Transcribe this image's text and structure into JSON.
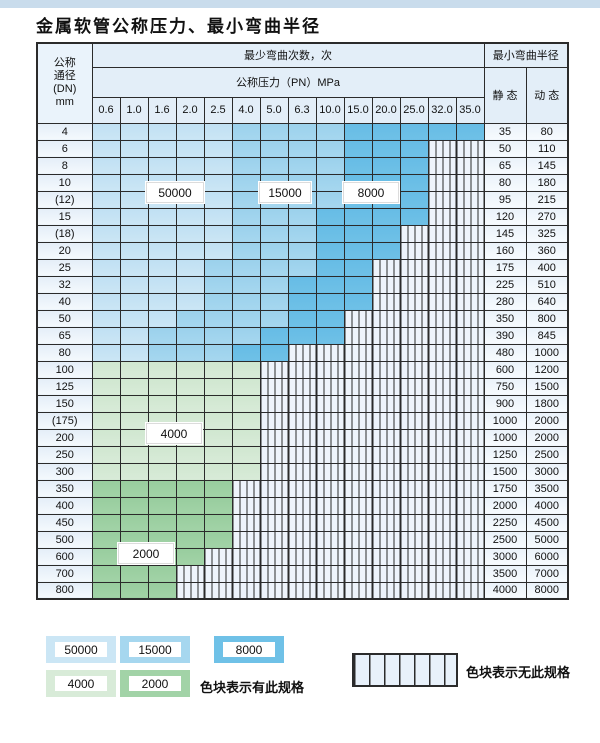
{
  "title": "金属软管公称压力、最小弯曲半径",
  "colors": {
    "zone_50000_light_blue": "#cbe6f5",
    "zone_15000_medium_blue": "#a6d7ef",
    "zone_8000_dark_blue": "#6fc1e7",
    "zone_4000_light_green": "#d8ebd8",
    "zone_2000_medium_green": "#a2d3a7",
    "header_background": "#e3eef8",
    "grid_border": "#2b2b2b"
  },
  "table": {
    "header": {
      "dn_label_lines": "公称 通径 (DN) mm",
      "dn_line1": "公称",
      "dn_line2": "通径",
      "dn_line3": "(DN)",
      "dn_line4": "mm",
      "bend_cycles_label": "最少弯曲次数，次",
      "pressure_label": "公称压力（PN）MPa",
      "radius_label": "最小弯曲半径",
      "static_label": "静 态",
      "dynamic_label": "动 态",
      "pressures": [
        "0.6",
        "1.0",
        "1.6",
        "2.0",
        "2.5",
        "4.0",
        "5.0",
        "6.3",
        "10.0",
        "15.0",
        "20.0",
        "25.0",
        "32.0",
        "35.0"
      ]
    },
    "zone_legend_key": {
      "L": "50000",
      "M": "15000",
      "D": "8000",
      "G": "4000",
      "E": "2000",
      "H": "no-spec-hatched"
    },
    "rows": [
      {
        "dn": "4",
        "zones": "LLLLLMMMMDDDDD",
        "static": "35",
        "dynamic": "80"
      },
      {
        "dn": "6",
        "zones": "LLLLLMMMMDDDHH",
        "static": "50",
        "dynamic": "110"
      },
      {
        "dn": "8",
        "zones": "LLLLLMMMMDDDHH",
        "static": "65",
        "dynamic": "145"
      },
      {
        "dn": "10",
        "zones": "LLLLLMMMMDDDHH",
        "static": "80",
        "dynamic": "180"
      },
      {
        "dn": "(12)",
        "zones": "LLLLLMMMMDDDHH",
        "static": "95",
        "dynamic": "215"
      },
      {
        "dn": "15",
        "zones": "LLLLLMMMDDDDHH",
        "static": "120",
        "dynamic": "270"
      },
      {
        "dn": "(18)",
        "zones": "LLLLLMMMDDDHHH",
        "static": "145",
        "dynamic": "325"
      },
      {
        "dn": "20",
        "zones": "LLLLLMMMDDDHHH",
        "static": "160",
        "dynamic": "360"
      },
      {
        "dn": "25",
        "zones": "LLLLMMMMDDHHHH",
        "static": "175",
        "dynamic": "400"
      },
      {
        "dn": "32",
        "zones": "LLLLMMMDDDHHHH",
        "static": "225",
        "dynamic": "510"
      },
      {
        "dn": "40",
        "zones": "LLLLMMMDDDHHHH",
        "static": "280",
        "dynamic": "640"
      },
      {
        "dn": "50",
        "zones": "LLLMMMMDDHHHHH",
        "static": "350",
        "dynamic": "800"
      },
      {
        "dn": "65",
        "zones": "LLMMMMDDDHHHHH",
        "static": "390",
        "dynamic": "845"
      },
      {
        "dn": "80",
        "zones": "LLMMMDDHHHHHHH",
        "static": "480",
        "dynamic": "1000"
      },
      {
        "dn": "100",
        "zones": "GGGGGGHHHHHHHH",
        "static": "600",
        "dynamic": "1200"
      },
      {
        "dn": "125",
        "zones": "GGGGGGHHHHHHHH",
        "static": "750",
        "dynamic": "1500"
      },
      {
        "dn": "150",
        "zones": "GGGGGGHHHHHHHH",
        "static": "900",
        "dynamic": "1800"
      },
      {
        "dn": "(175)",
        "zones": "GGGGGGHHHHHHHH",
        "static": "1000",
        "dynamic": "2000"
      },
      {
        "dn": "200",
        "zones": "GGGGGGHHHHHHHH",
        "static": "1000",
        "dynamic": "2000"
      },
      {
        "dn": "250",
        "zones": "GGGGGGHHHHHHHH",
        "static": "1250",
        "dynamic": "2500"
      },
      {
        "dn": "300",
        "zones": "GGGGGGHHHHHHHH",
        "static": "1500",
        "dynamic": "3000"
      },
      {
        "dn": "350",
        "zones": "EEEEEHHHHHHHHH",
        "static": "1750",
        "dynamic": "3500"
      },
      {
        "dn": "400",
        "zones": "EEEEEHHHHHHHHH",
        "static": "2000",
        "dynamic": "4000"
      },
      {
        "dn": "450",
        "zones": "EEEEEHHHHHHHHH",
        "static": "2250",
        "dynamic": "4500"
      },
      {
        "dn": "500",
        "zones": "EEEEEHHHHHHHHH",
        "static": "2500",
        "dynamic": "5000"
      },
      {
        "dn": "600",
        "zones": "EEEEHHHHHHHHHH",
        "static": "3000",
        "dynamic": "6000"
      },
      {
        "dn": "700",
        "zones": "EEEHHHHHHHHHHH",
        "static": "3500",
        "dynamic": "7000"
      },
      {
        "dn": "800",
        "zones": "EEEHHHHHHHHHHH",
        "static": "4000",
        "dynamic": "8000"
      }
    ]
  },
  "overlay_labels": {
    "l50000": "50000",
    "l15000": "15000",
    "l8000": "8000",
    "l4000": "4000",
    "l2000": "2000"
  },
  "legend": {
    "sw50000": "50000",
    "sw15000": "15000",
    "sw8000": "8000",
    "sw4000": "4000",
    "sw2000": "2000",
    "has_spec_text": "色块表示有此规格",
    "no_spec_text": "色块表示无此规格"
  }
}
